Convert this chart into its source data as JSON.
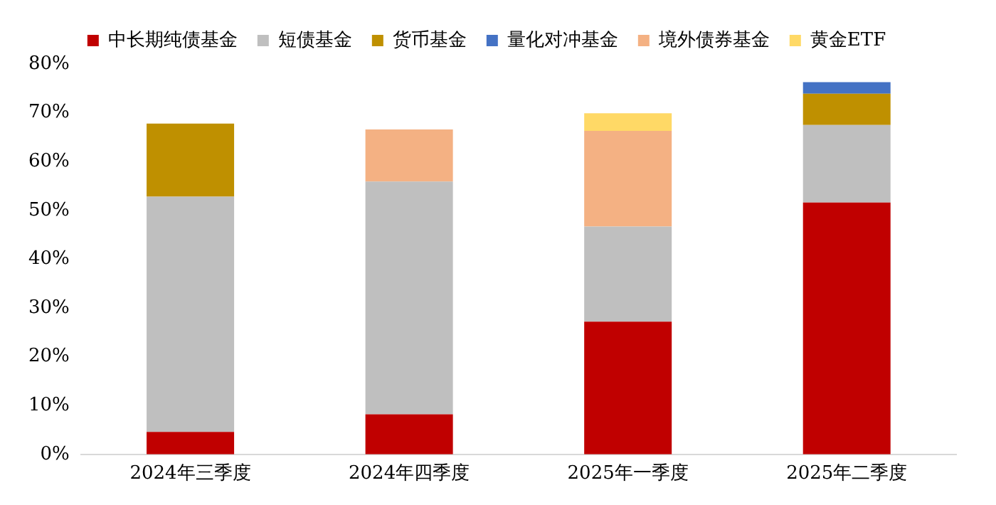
{
  "chart_data": {
    "type": "bar",
    "stacked": true,
    "legend": "top",
    "grid": false,
    "categories": [
      "2024年三季度",
      "2024年四季度",
      "2025年一季度",
      "2025年二季度"
    ],
    "series": [
      {
        "name": "中长期纯债基金",
        "color": "#c00000",
        "values": [
          4.6,
          8.2,
          27.2,
          51.6
        ]
      },
      {
        "name": "短债基金",
        "color": "#bfbfbf",
        "values": [
          48.2,
          47.7,
          19.5,
          15.9
        ]
      },
      {
        "name": "货币基金",
        "color": "#bf9000",
        "values": [
          15.0,
          null,
          null,
          6.4
        ]
      },
      {
        "name": "量化对冲基金",
        "color": "#4472c4",
        "values": [
          null,
          null,
          null,
          2.4
        ]
      },
      {
        "name": "境外债券基金",
        "color": "#f4b183",
        "values": [
          null,
          10.7,
          19.6,
          null
        ]
      },
      {
        "name": "黄金ETF",
        "color": "#ffd966",
        "values": [
          null,
          null,
          3.6,
          null
        ]
      }
    ],
    "ylim": [
      0,
      80
    ],
    "yticks": [
      {
        "value": 0,
        "label": "0%"
      },
      {
        "value": 10,
        "label": "10%"
      },
      {
        "value": 20,
        "label": "20%"
      },
      {
        "value": 30,
        "label": "30%"
      },
      {
        "value": 40,
        "label": "40%"
      },
      {
        "value": 50,
        "label": "50%"
      },
      {
        "value": 60,
        "label": "60%"
      },
      {
        "value": 70,
        "label": "70%"
      },
      {
        "value": 80,
        "label": "80%"
      }
    ]
  }
}
